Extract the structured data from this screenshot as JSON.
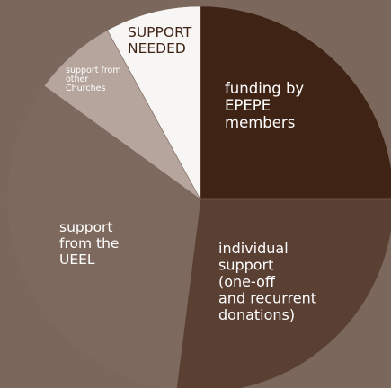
{
  "chart_data": {
    "type": "pie",
    "title": "",
    "slices": [
      {
        "label": "funding by EPEPE members",
        "lines": [
          "funding by",
          "EPEPE",
          "members"
        ],
        "value": 25,
        "color": "#3f2315",
        "text_color": "#ffffff"
      },
      {
        "label": "individual support (one-off and recurrent donations)",
        "lines": [
          "individual",
          "support",
          "(one-off",
          "and recurrent",
          "donations)"
        ],
        "value": 27,
        "color": "#5a3f33",
        "text_color": "#ffffff"
      },
      {
        "label": "support from the UEEL",
        "lines": [
          "support",
          "from the",
          "UEEL"
        ],
        "value": 33,
        "color": "#7e695e",
        "text_color": "#ffffff"
      },
      {
        "label": "support from other Churches",
        "lines": [
          "support from",
          "other",
          "Churches"
        ],
        "value": 7,
        "color": "#b5a59d",
        "text_color": "#ffffff"
      },
      {
        "label": "SUPPORT NEEDED",
        "lines": [
          "SUPPORT",
          "NEEDED"
        ],
        "value": 8,
        "color": "#f7f6f4",
        "text_color": "#3f2315"
      }
    ]
  }
}
